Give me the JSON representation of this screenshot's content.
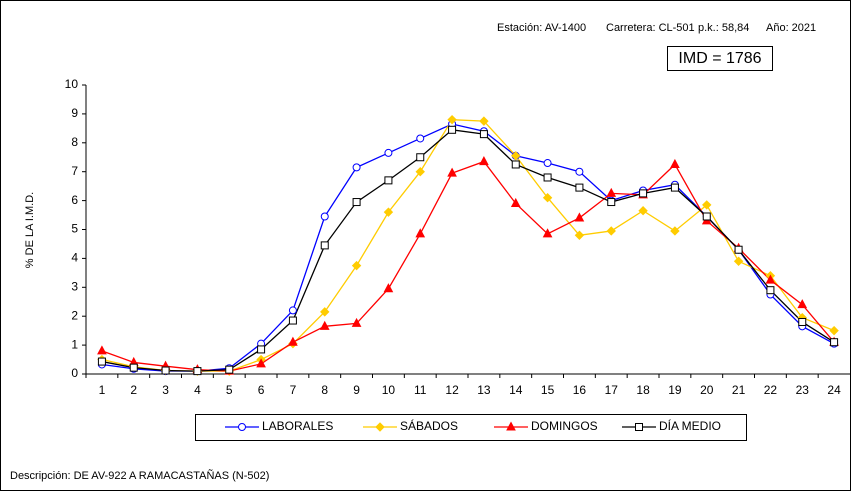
{
  "chart_data": {
    "type": "line",
    "header": [
      "Estación: AV-1400",
      "Carretera: CL-501",
      "p.k.: 58,84",
      "Año: 2021"
    ],
    "imd": "IMD = 1786",
    "ylabel": "% DE LA I.M.D.",
    "description": "Descripción: DE AV-922 A RAMACASTAÑAS (N-502)",
    "categories": [
      1,
      2,
      3,
      4,
      5,
      6,
      7,
      8,
      9,
      10,
      11,
      12,
      13,
      14,
      15,
      16,
      17,
      18,
      19,
      20,
      21,
      22,
      23,
      24
    ],
    "ylim": [
      0,
      10
    ],
    "yticks": [
      0,
      1,
      2,
      3,
      4,
      5,
      6,
      7,
      8,
      9,
      10
    ],
    "series": [
      {
        "name": "LABORALES",
        "color": "#0000ff",
        "marker": "circle",
        "values": [
          0.33,
          0.18,
          0.1,
          0.1,
          0.2,
          1.05,
          2.2,
          5.45,
          7.15,
          7.65,
          8.15,
          8.65,
          8.4,
          7.55,
          7.3,
          7.0,
          6.0,
          6.35,
          6.55,
          5.45,
          4.3,
          2.75,
          1.65,
          1.05
        ]
      },
      {
        "name": "SÁBADOS",
        "color": "#ffcc00",
        "marker": "diamond",
        "values": [
          0.5,
          0.25,
          0.12,
          0.1,
          0.1,
          0.5,
          1.05,
          2.15,
          3.75,
          5.6,
          7.0,
          8.8,
          8.75,
          7.55,
          6.1,
          4.8,
          4.95,
          5.65,
          4.95,
          5.85,
          3.9,
          3.4,
          1.95,
          1.5
        ]
      },
      {
        "name": "DOMINGOS",
        "color": "#ff0000",
        "marker": "triangle",
        "values": [
          0.8,
          0.4,
          0.27,
          0.15,
          0.1,
          0.35,
          1.1,
          1.65,
          1.75,
          2.95,
          4.85,
          6.95,
          7.35,
          5.9,
          4.85,
          5.4,
          6.25,
          6.2,
          7.25,
          5.3,
          4.35,
          3.25,
          2.4,
          1.1
        ]
      },
      {
        "name": "DÍA MEDIO",
        "color": "#000000",
        "marker": "square",
        "values": [
          0.43,
          0.22,
          0.12,
          0.1,
          0.15,
          0.85,
          1.85,
          4.45,
          5.95,
          6.7,
          7.5,
          8.45,
          8.3,
          7.25,
          6.8,
          6.45,
          5.95,
          6.25,
          6.45,
          5.45,
          4.3,
          2.9,
          1.8,
          1.1
        ]
      }
    ]
  }
}
